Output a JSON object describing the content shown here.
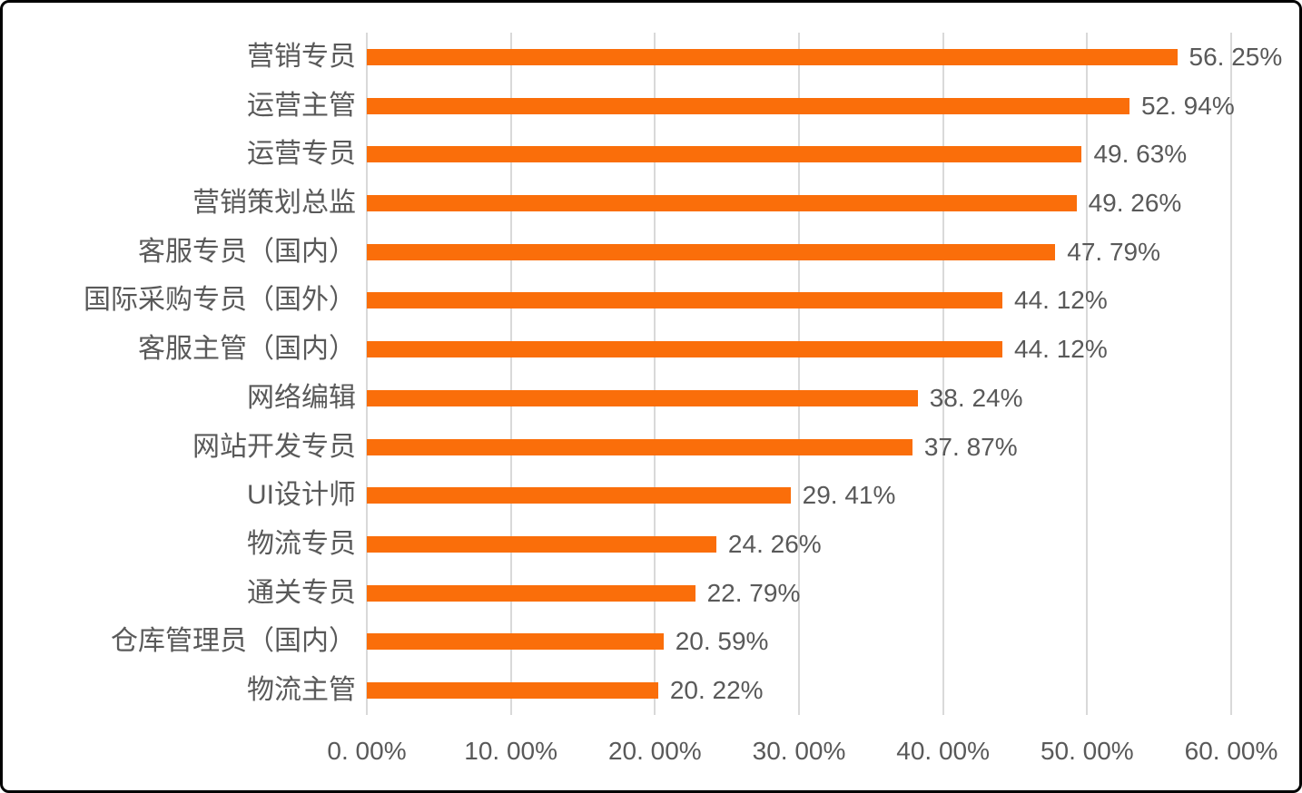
{
  "chart_data": {
    "type": "bar",
    "orientation": "horizontal",
    "title": "",
    "xlabel": "",
    "ylabel": "",
    "xlim": [
      0,
      60
    ],
    "x_tick_step_pct": 10,
    "grid": "vertical",
    "legend": "none",
    "x_ticks": [
      {
        "value": 0,
        "label": "0. 00%"
      },
      {
        "value": 10,
        "label": "10. 00%"
      },
      {
        "value": 20,
        "label": "20. 00%"
      },
      {
        "value": 30,
        "label": "30. 00%"
      },
      {
        "value": 40,
        "label": "40. 00%"
      },
      {
        "value": 50,
        "label": "50. 00%"
      },
      {
        "value": 60,
        "label": "60. 00%"
      }
    ],
    "bars": [
      {
        "category": "营销专员",
        "value": 56.25,
        "label": "56. 25%"
      },
      {
        "category": "运营主管",
        "value": 52.94,
        "label": "52. 94%"
      },
      {
        "category": "运营专员",
        "value": 49.63,
        "label": "49. 63%"
      },
      {
        "category": "营销策划总监",
        "value": 49.26,
        "label": "49. 26%"
      },
      {
        "category": "客服专员（国内）",
        "value": 47.79,
        "label": "47. 79%"
      },
      {
        "category": "国际采购专员（国外）",
        "value": 44.12,
        "label": "44. 12%"
      },
      {
        "category": "客服主管（国内）",
        "value": 44.12,
        "label": "44. 12%"
      },
      {
        "category": "网络编辑",
        "value": 38.24,
        "label": "38. 24%"
      },
      {
        "category": "网站开发专员",
        "value": 37.87,
        "label": "37. 87%"
      },
      {
        "category": "UI设计师",
        "value": 29.41,
        "label": "29. 41%"
      },
      {
        "category": "物流专员",
        "value": 24.26,
        "label": "24. 26%"
      },
      {
        "category": "通关专员",
        "value": 22.79,
        "label": "22. 79%"
      },
      {
        "category": "仓库管理员（国内）",
        "value": 20.59,
        "label": "20. 59%"
      },
      {
        "category": "物流主管",
        "value": 20.22,
        "label": "20. 22%"
      }
    ],
    "colors": {
      "bar": "#FA6E0A",
      "gridline": "#D9D9D9",
      "text": "#595959",
      "background": "#FFFFFF",
      "frame_border": "#000000"
    }
  }
}
